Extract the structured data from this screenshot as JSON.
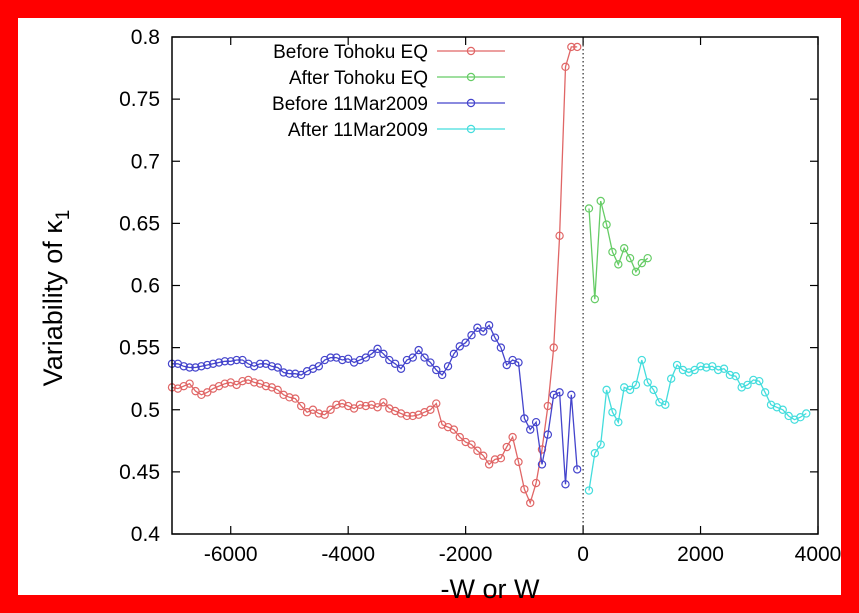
{
  "chart_data": {
    "type": "line",
    "title": "",
    "xlabel": "-W or W",
    "ylabel_main": "Variability of κ",
    "ylabel_sub": "1",
    "xlim": [
      -7000,
      4000
    ],
    "ylim": [
      0.4,
      0.8
    ],
    "xticks": [
      "-6000",
      "-4000",
      "-2000",
      "0",
      "2000",
      "4000"
    ],
    "xtick_values": [
      -6000,
      -4000,
      -2000,
      0,
      2000,
      4000
    ],
    "yticks": [
      "0.4",
      "0.45",
      "0.5",
      "0.55",
      "0.6",
      "0.65",
      "0.7",
      "0.75",
      "0.8"
    ],
    "ytick_values": [
      0.4,
      0.45,
      0.5,
      0.55,
      0.6,
      0.65,
      0.7,
      0.75,
      0.8
    ],
    "vline_x": 0,
    "legend_position": "top",
    "series": [
      {
        "name": "Before Tohoku EQ",
        "color": "#e06666",
        "x": [
          -7000,
          -6900,
          -6800,
          -6700,
          -6600,
          -6500,
          -6400,
          -6300,
          -6200,
          -6100,
          -6000,
          -5900,
          -5800,
          -5700,
          -5600,
          -5500,
          -5400,
          -5300,
          -5200,
          -5100,
          -5000,
          -4900,
          -4800,
          -4700,
          -4600,
          -4500,
          -4400,
          -4300,
          -4200,
          -4100,
          -4000,
          -3900,
          -3800,
          -3700,
          -3600,
          -3500,
          -3400,
          -3300,
          -3200,
          -3100,
          -3000,
          -2900,
          -2800,
          -2700,
          -2600,
          -2500,
          -2400,
          -2300,
          -2200,
          -2100,
          -2000,
          -1900,
          -1800,
          -1700,
          -1600,
          -1500,
          -1400,
          -1300,
          -1200,
          -1100,
          -1000,
          -900,
          -800,
          -700,
          -600,
          -500,
          -400,
          -300,
          -200,
          -100
        ],
        "y": [
          0.518,
          0.517,
          0.519,
          0.521,
          0.515,
          0.512,
          0.514,
          0.517,
          0.519,
          0.521,
          0.522,
          0.52,
          0.523,
          0.524,
          0.522,
          0.521,
          0.519,
          0.518,
          0.516,
          0.512,
          0.51,
          0.509,
          0.503,
          0.498,
          0.5,
          0.497,
          0.496,
          0.5,
          0.504,
          0.505,
          0.503,
          0.501,
          0.504,
          0.503,
          0.504,
          0.502,
          0.506,
          0.501,
          0.499,
          0.497,
          0.495,
          0.495,
          0.496,
          0.498,
          0.5,
          0.505,
          0.488,
          0.486,
          0.484,
          0.478,
          0.474,
          0.472,
          0.467,
          0.463,
          0.456,
          0.46,
          0.461,
          0.47,
          0.478,
          0.458,
          0.436,
          0.425,
          0.441,
          0.468,
          0.503,
          0.55,
          0.64,
          0.776,
          0.792,
          0.792
        ]
      },
      {
        "name": "After Tohoku EQ",
        "color": "#66cc66",
        "x": [
          100,
          200,
          300,
          400,
          500,
          600,
          700,
          800,
          900,
          1000,
          1100
        ],
        "y": [
          0.662,
          0.589,
          0.668,
          0.649,
          0.627,
          0.617,
          0.63,
          0.622,
          0.611,
          0.618,
          0.622
        ]
      },
      {
        "name": "Before 11Mar2009",
        "color": "#4444cc",
        "x": [
          -7000,
          -6900,
          -6800,
          -6700,
          -6600,
          -6500,
          -6400,
          -6300,
          -6200,
          -6100,
          -6000,
          -5900,
          -5800,
          -5700,
          -5600,
          -5500,
          -5400,
          -5300,
          -5200,
          -5100,
          -5000,
          -4900,
          -4800,
          -4700,
          -4600,
          -4500,
          -4400,
          -4300,
          -4200,
          -4100,
          -4000,
          -3900,
          -3800,
          -3700,
          -3600,
          -3500,
          -3400,
          -3300,
          -3200,
          -3100,
          -3000,
          -2900,
          -2800,
          -2700,
          -2600,
          -2500,
          -2400,
          -2300,
          -2200,
          -2100,
          -2000,
          -1900,
          -1800,
          -1700,
          -1600,
          -1500,
          -1400,
          -1300,
          -1200,
          -1100,
          -1000,
          -900,
          -800,
          -700,
          -600,
          -500,
          -400,
          -300,
          -200,
          -100
        ],
        "y": [
          0.537,
          0.537,
          0.535,
          0.534,
          0.534,
          0.535,
          0.536,
          0.537,
          0.538,
          0.539,
          0.539,
          0.54,
          0.54,
          0.537,
          0.535,
          0.537,
          0.537,
          0.535,
          0.534,
          0.53,
          0.529,
          0.529,
          0.528,
          0.531,
          0.533,
          0.535,
          0.54,
          0.542,
          0.542,
          0.54,
          0.541,
          0.538,
          0.54,
          0.542,
          0.545,
          0.549,
          0.545,
          0.54,
          0.537,
          0.533,
          0.54,
          0.542,
          0.548,
          0.542,
          0.538,
          0.532,
          0.528,
          0.535,
          0.545,
          0.551,
          0.554,
          0.56,
          0.566,
          0.563,
          0.568,
          0.558,
          0.55,
          0.536,
          0.54,
          0.538,
          0.493,
          0.484,
          0.49,
          0.456,
          0.48,
          0.512,
          0.514,
          0.44,
          0.512,
          0.452
        ]
      },
      {
        "name": "After 11Mar2009",
        "color": "#44dddd",
        "x": [
          100,
          200,
          300,
          400,
          500,
          600,
          700,
          800,
          900,
          1000,
          1100,
          1200,
          1300,
          1400,
          1500,
          1600,
          1700,
          1800,
          1900,
          2000,
          2100,
          2200,
          2300,
          2400,
          2500,
          2600,
          2700,
          2800,
          2900,
          3000,
          3100,
          3200,
          3300,
          3400,
          3500,
          3600,
          3700,
          3800
        ],
        "y": [
          0.435,
          0.465,
          0.472,
          0.516,
          0.498,
          0.49,
          0.518,
          0.516,
          0.52,
          0.54,
          0.522,
          0.516,
          0.506,
          0.504,
          0.525,
          0.536,
          0.532,
          0.53,
          0.532,
          0.535,
          0.534,
          0.535,
          0.532,
          0.533,
          0.528,
          0.527,
          0.518,
          0.52,
          0.524,
          0.523,
          0.514,
          0.504,
          0.502,
          0.5,
          0.495,
          0.492,
          0.494,
          0.497
        ]
      }
    ]
  }
}
